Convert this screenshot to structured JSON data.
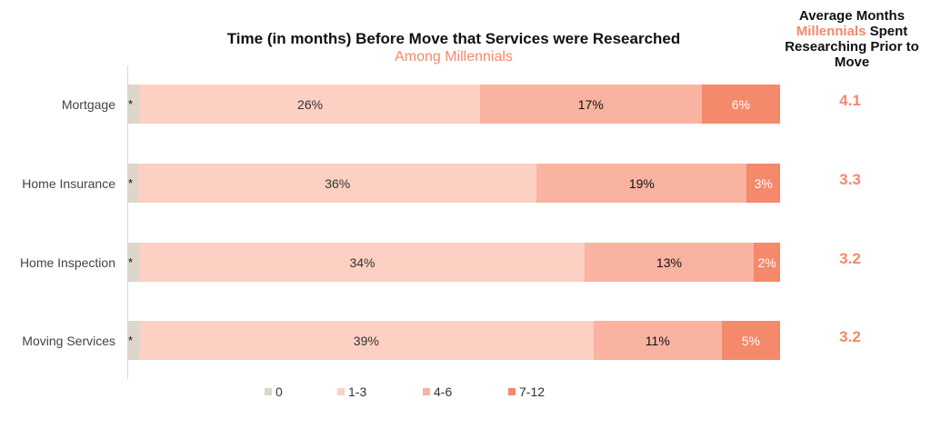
{
  "chart_data": {
    "type": "bar",
    "orientation": "horizontal",
    "stacked": true,
    "title": "Time (in months) Before Move that Services were Researched",
    "subtitle": "Among Millennials",
    "categories": [
      "Mortgage",
      "Home Insurance",
      "Home Inspection",
      "Moving Services"
    ],
    "zero_marker": "*",
    "series": [
      {
        "name": "0",
        "color": "#DCD6CC",
        "values": [
          1,
          1,
          1,
          1
        ],
        "labels": [
          "",
          "",
          "",
          ""
        ]
      },
      {
        "name": "1-3",
        "color": "#FCD0C2",
        "values": [
          26,
          36,
          34,
          39
        ],
        "labels": [
          "26%",
          "36%",
          "34%",
          "39%"
        ]
      },
      {
        "name": "4-6",
        "color": "#F9B3A0",
        "values": [
          17,
          19,
          13,
          11
        ],
        "labels": [
          "17%",
          "19%",
          "13%",
          "11%"
        ]
      },
      {
        "name": "7-12",
        "color": "#F4896B",
        "values": [
          6,
          3,
          2,
          5
        ],
        "labels": [
          "6%",
          "3%",
          "2%",
          "5%"
        ]
      }
    ],
    "side_header": {
      "before": "Average Months",
      "highlight": "Millennials",
      "after": "Spent Researching Prior to Move"
    },
    "averages": [
      "4.1",
      "3.3",
      "3.2",
      "3.2"
    ],
    "legend_position": "bottom"
  }
}
